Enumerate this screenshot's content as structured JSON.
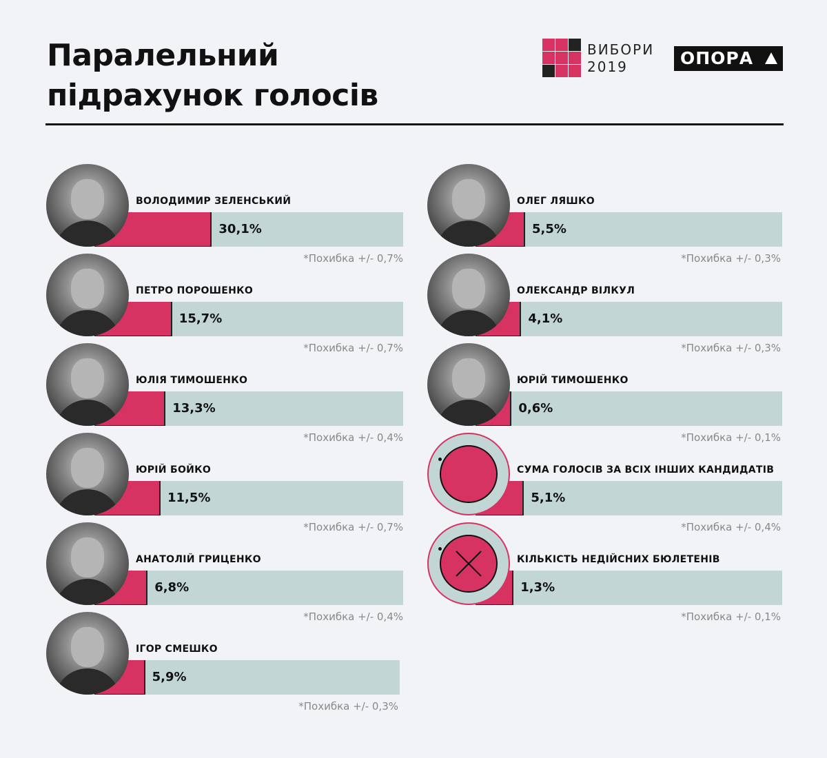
{
  "header": {
    "title_line1": "Паралельний",
    "title_line2": "підрахунок голосів",
    "logo_vybory_line1": "ВИБОРИ",
    "logo_vybory_line2": "2019",
    "logo_opora": "ОПОРА",
    "vybory_grid_colors": [
      "#d63262",
      "#d63262",
      "#222222",
      "#d63262",
      "#d63262",
      "#d63262",
      "#222222",
      "#d63262",
      "#d63262"
    ]
  },
  "colors": {
    "accent": "#d63262",
    "track": "#c2d6d5",
    "text": "#111111",
    "muted": "#888888"
  },
  "chart_data": {
    "type": "bar",
    "title": "Паралельний підрахунок голосів",
    "unit": "%",
    "left": [
      {
        "label": "ВОЛОДИМИР ЗЕЛЕНСЬКИЙ",
        "value": 30.1,
        "value_label": "30,1%",
        "error": "*Похибка +/- 0,7%",
        "icon": "photo"
      },
      {
        "label": "ПЕТРО ПОРОШЕНКО",
        "value": 15.7,
        "value_label": "15,7%",
        "error": "*Похибка +/- 0,7%",
        "icon": "photo"
      },
      {
        "label": "ЮЛІЯ ТИМОШЕНКО",
        "value": 13.3,
        "value_label": "13,3%",
        "error": "*Похибка +/- 0,4%",
        "icon": "photo"
      },
      {
        "label": "ЮРІЙ БОЙКО",
        "value": 11.5,
        "value_label": "11,5%",
        "error": "*Похибка +/- 0,7%",
        "icon": "photo"
      },
      {
        "label": "АНАТОЛІЙ ГРИЦЕНКО",
        "value": 6.8,
        "value_label": "6,8%",
        "error": "*Похибка +/- 0,4%",
        "icon": "photo"
      },
      {
        "label": "ІГОР СМЕШКО",
        "value": 5.9,
        "value_label": "5,9%",
        "error": "*Похибка +/- 0,3%",
        "icon": "photo"
      }
    ],
    "right": [
      {
        "label": "ОЛЕГ ЛЯШКО",
        "value": 5.5,
        "value_label": "5,5%",
        "error": "*Похибка +/- 0,3%",
        "icon": "photo"
      },
      {
        "label": "ОЛЕКСАНДР ВІЛКУЛ",
        "value": 4.1,
        "value_label": "4,1%",
        "error": "*Похибка +/- 0,3%",
        "icon": "photo"
      },
      {
        "label": "ЮРІЙ ТИМОШЕНКО",
        "value": 0.6,
        "value_label": "0,6%",
        "error": "*Похибка +/- 0,1%",
        "icon": "photo"
      },
      {
        "label": "СУМА ГОЛОСІВ ЗА ВСІХ ІНШИХ КАНДИДАТІВ",
        "value": 5.1,
        "value_label": "5,1%",
        "error": "*Похибка +/- 0,4%",
        "icon": "circle-icon"
      },
      {
        "label": "КІЛЬКІСТЬ НЕДІЙСНИХ БЮЛЕТЕНІВ",
        "value": 1.3,
        "value_label": "1,3%",
        "error": "*Похибка +/- 0,1%",
        "icon": "cross-circle-icon"
      }
    ]
  }
}
